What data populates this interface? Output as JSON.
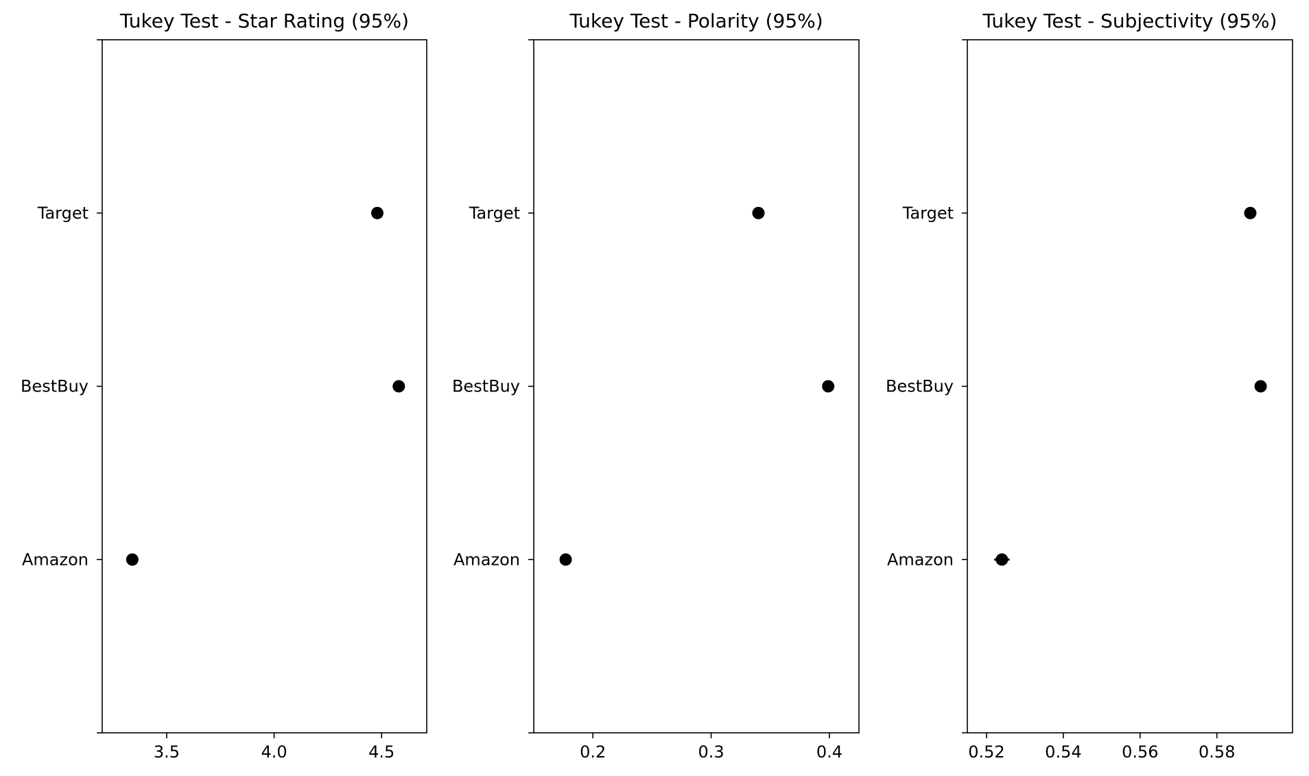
{
  "chart_data": [
    {
      "type": "scatter",
      "title": "Tukey Test - Star Rating (95%)",
      "xlabel": "",
      "ylabel": "",
      "categories": [
        "Amazon",
        "BestBuy",
        "Target"
      ],
      "values": [
        3.34,
        4.58,
        4.48
      ],
      "ci_half_width": [
        0.01,
        0.01,
        0.01
      ],
      "xlim": [
        3.2,
        4.71
      ],
      "xticks": [
        3.5,
        4.0,
        4.5
      ],
      "xtick_labels": [
        "3.5",
        "4.0",
        "4.5"
      ],
      "ylim": [
        -1,
        3
      ],
      "marker_color": "#000000",
      "grid": false
    },
    {
      "type": "scatter",
      "title": "Tukey Test - Polarity (95%)",
      "xlabel": "",
      "ylabel": "",
      "categories": [
        "Amazon",
        "BestBuy",
        "Target"
      ],
      "values": [
        0.177,
        0.399,
        0.34
      ],
      "ci_half_width": [
        0.002,
        0.002,
        0.002
      ],
      "xlim": [
        0.15,
        0.425
      ],
      "xticks": [
        0.2,
        0.3,
        0.4
      ],
      "xtick_labels": [
        "0.2",
        "0.3",
        "0.4"
      ],
      "ylim": [
        -1,
        3
      ],
      "marker_color": "#000000",
      "grid": false
    },
    {
      "type": "scatter",
      "title": "Tukey Test - Subjectivity (95%)",
      "xlabel": "",
      "ylabel": "",
      "categories": [
        "Amazon",
        "BestBuy",
        "Target"
      ],
      "values": [
        0.524,
        0.5914,
        0.5887
      ],
      "ci_half_width": [
        0.002,
        0.0005,
        0.0005
      ],
      "xlim": [
        0.515,
        0.5997
      ],
      "xticks": [
        0.52,
        0.54,
        0.56,
        0.58
      ],
      "xtick_labels": [
        "0.52",
        "0.54",
        "0.56",
        "0.58"
      ],
      "ylim": [
        -1,
        3
      ],
      "marker_color": "#000000",
      "grid": false
    }
  ]
}
